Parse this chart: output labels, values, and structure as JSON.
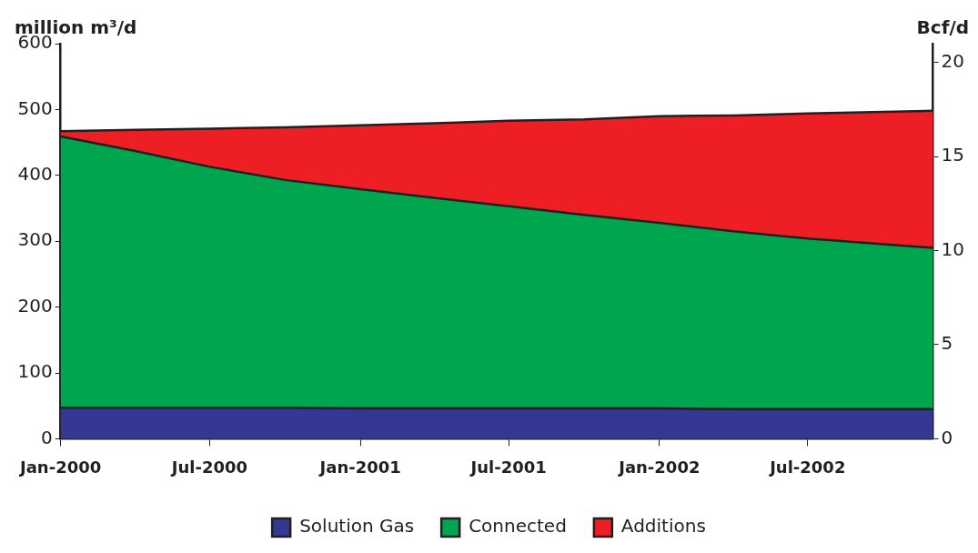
{
  "chart_data": {
    "type": "area",
    "stacked": true,
    "ylabel": "million m³/d",
    "y2label": "Bcf/d",
    "x": [
      "2000-01",
      "2000-04",
      "2000-07",
      "2000-10",
      "2001-01",
      "2001-04",
      "2001-07",
      "2001-10",
      "2002-01",
      "2002-04",
      "2002-07",
      "2002-12"
    ],
    "series": [
      {
        "name": "Solution Gas",
        "color": "#343893",
        "values": [
          47,
          47,
          47,
          47,
          46,
          46,
          46,
          46,
          46,
          45,
          45,
          45
        ]
      },
      {
        "name": "Connected",
        "color": "#00a54f",
        "values": [
          412,
          390,
          366,
          346,
          333,
          320,
          307,
          294,
          282,
          270,
          259,
          245
        ]
      },
      {
        "name": "Additions",
        "color": "#ed1f24",
        "values": [
          8,
          32,
          58,
          80,
          97,
          113,
          130,
          145,
          162,
          176,
          190,
          208
        ]
      }
    ],
    "xlim": [
      "2000-01",
      "2002-12"
    ],
    "xticks": [
      {
        "value": "2000-01",
        "label": "Jan-2000"
      },
      {
        "value": "2000-07",
        "label": "Jul-2000"
      },
      {
        "value": "2001-01",
        "label": "Jan-2001"
      },
      {
        "value": "2001-07",
        "label": "Jul-2001"
      },
      {
        "value": "2002-01",
        "label": "Jan-2002"
      },
      {
        "value": "2002-07",
        "label": "Jul-2002"
      }
    ],
    "ylim": [
      0,
      600
    ],
    "yticks": [
      0,
      100,
      200,
      300,
      400,
      500,
      600
    ],
    "y2lim": [
      0,
      21
    ],
    "y2ticks": [
      0,
      5,
      10,
      15,
      20
    ],
    "legend": "bottom"
  }
}
